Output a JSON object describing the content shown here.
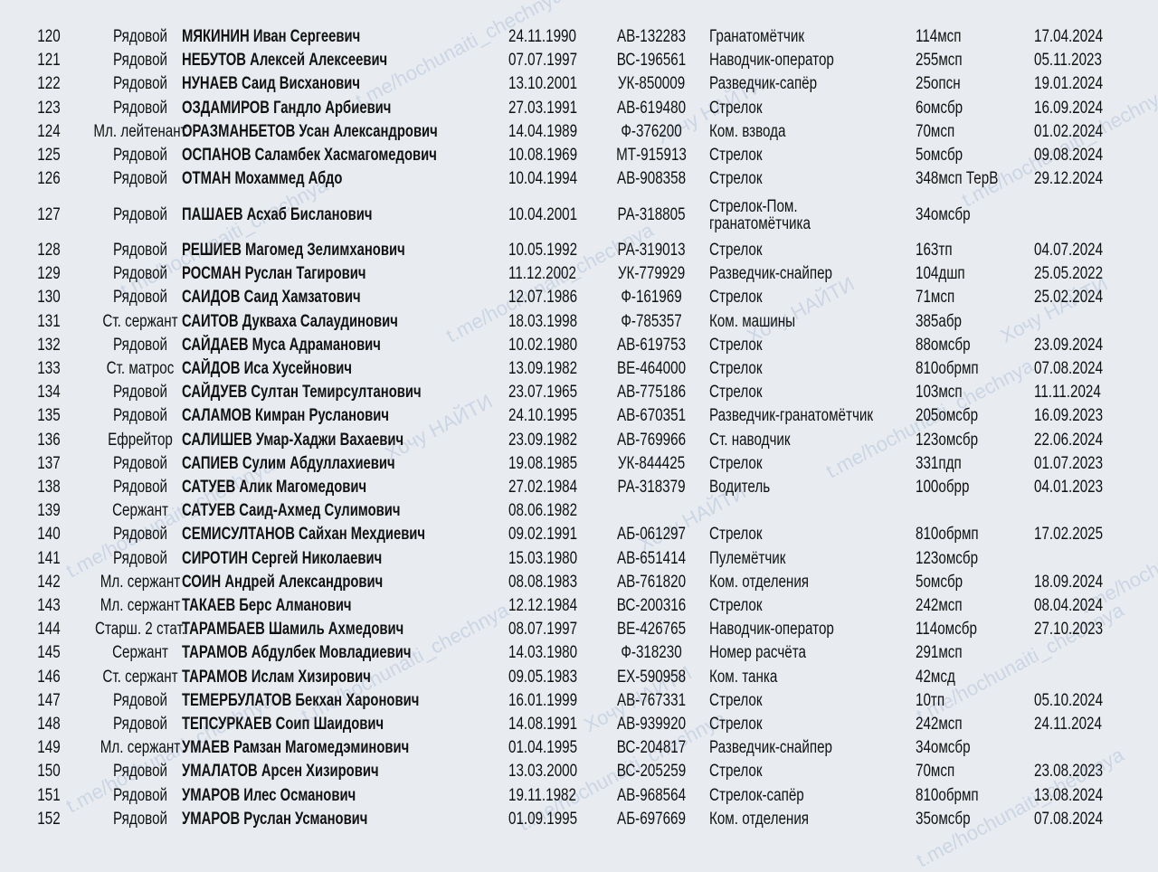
{
  "watermark": {
    "link": "t.me/hochunaiti_chechnya",
    "brand": "Хочу НАЙТИ"
  },
  "rows": [
    {
      "n": "120",
      "rank": "Рядовой",
      "name": "МЯКИНИН Иван Сергеевич",
      "dob": "24.11.1990",
      "doc": "АВ-132283",
      "role": "Гранатомётчик",
      "unit": "114мсп",
      "date": "17.04.2024"
    },
    {
      "n": "121",
      "rank": "Рядовой",
      "name": "НЕБУТОВ Алексей Алексеевич",
      "dob": "07.07.1997",
      "doc": "ВС-196561",
      "role": "Наводчик-оператор",
      "unit": "255мсп",
      "date": "05.11.2023"
    },
    {
      "n": "122",
      "rank": "Рядовой",
      "name": "НУНАЕВ Саид Висханович",
      "dob": "13.10.2001",
      "doc": "УК-850009",
      "role": "Разведчик-сапёр",
      "unit": "25опсн",
      "date": "19.01.2024"
    },
    {
      "n": "123",
      "rank": "Рядовой",
      "name": "ОЗДАМИРОВ Гандло Арбиевич",
      "dob": "27.03.1991",
      "doc": "АВ-619480",
      "role": "Стрелок",
      "unit": "6омсбр",
      "date": "16.09.2024"
    },
    {
      "n": "124",
      "rank": "Мл. лейтенант",
      "name": "ОРАЗМАНБЕТОВ Усан Александрович",
      "dob": "14.04.1989",
      "doc": "Ф-376200",
      "role": "Ком. взвода",
      "unit": "70мсп",
      "date": "01.02.2024"
    },
    {
      "n": "125",
      "rank": "Рядовой",
      "name": "ОСПАНОВ Саламбек Хасмагомедович",
      "dob": "10.08.1969",
      "doc": "МТ-915913",
      "role": "Стрелок",
      "unit": "5омсбр",
      "date": "09.08.2024"
    },
    {
      "n": "126",
      "rank": "Рядовой",
      "name": "ОТМАН Мохаммед Абдо",
      "dob": "10.04.1994",
      "doc": "АВ-908358",
      "role": "Стрелок",
      "unit": "348мсп ТерВ",
      "date": "29.12.2024"
    },
    {
      "n": "127",
      "rank": "Рядовой",
      "name": "ПАШАЕВ Асхаб Бисланович",
      "dob": "10.04.2001",
      "doc": "РА-318805",
      "role": "Стрелок-Пом. гранатомётчика",
      "unit": "34омсбр",
      "date": ""
    },
    {
      "n": "128",
      "rank": "Рядовой",
      "name": "РЕШИЕВ Магомед Зелимханович",
      "dob": "10.05.1992",
      "doc": "РА-319013",
      "role": "Стрелок",
      "unit": "163тп",
      "date": "04.07.2024"
    },
    {
      "n": "129",
      "rank": "Рядовой",
      "name": "РОСМАН Руслан Тагирович",
      "dob": "11.12.2002",
      "doc": "УК-779929",
      "role": "Разведчик-снайпер",
      "unit": "104дшп",
      "date": "25.05.2022"
    },
    {
      "n": "130",
      "rank": "Рядовой",
      "name": "САИДОВ Саид Хамзатович",
      "dob": "12.07.1986",
      "doc": "Ф-161969",
      "role": "Стрелок",
      "unit": "71мсп",
      "date": "25.02.2024"
    },
    {
      "n": "131",
      "rank": "Ст. сержант",
      "name": "САИТОВ Дукваха Салаудинович",
      "dob": "18.03.1998",
      "doc": "Ф-785357",
      "role": "Ком. машины",
      "unit": "385абр",
      "date": ""
    },
    {
      "n": "132",
      "rank": "Рядовой",
      "name": "САЙДАЕВ Муса Адраманович",
      "dob": "10.02.1980",
      "doc": "АВ-619753",
      "role": "Стрелок",
      "unit": "88омсбр",
      "date": "23.09.2024"
    },
    {
      "n": "133",
      "rank": "Ст. матрос",
      "name": "САЙДОВ Иса Хусейнович",
      "dob": "13.09.1982",
      "doc": "ВЕ-464000",
      "role": "Стрелок",
      "unit": "810обрмп",
      "date": "07.08.2024"
    },
    {
      "n": "134",
      "rank": "Рядовой",
      "name": "САЙДУЕВ Султан Темирсултанович",
      "dob": "23.07.1965",
      "doc": "АВ-775186",
      "role": "Стрелок",
      "unit": "103мсп",
      "date": "11.11.2024"
    },
    {
      "n": "135",
      "rank": "Рядовой",
      "name": "САЛАМОВ Кимран Русланович",
      "dob": "24.10.1995",
      "doc": "АВ-670351",
      "role": "Разведчик-гранатомётчик",
      "unit": "205омсбр",
      "date": "16.09.2023"
    },
    {
      "n": "136",
      "rank": "Ефрейтор",
      "name": "САЛИШЕВ Умар-Хаджи Вахаевич",
      "dob": "23.09.1982",
      "doc": "АВ-769966",
      "role": "Ст. наводчик",
      "unit": "123омсбр",
      "date": "22.06.2024"
    },
    {
      "n": "137",
      "rank": "Рядовой",
      "name": "САПИЕВ Сулим Абдуллахиевич",
      "dob": "19.08.1985",
      "doc": "УК-844425",
      "role": "Стрелок",
      "unit": "331пдп",
      "date": "01.07.2023"
    },
    {
      "n": "138",
      "rank": "Рядовой",
      "name": "САТУЕВ Алик Магомедович",
      "dob": "27.02.1984",
      "doc": "РА-318379",
      "role": "Водитель",
      "unit": "100обрр",
      "date": "04.01.2023"
    },
    {
      "n": "139",
      "rank": "Сержант",
      "name": "САТУЕВ Саид-Ахмед Сулимович",
      "dob": "08.06.1982",
      "doc": "",
      "role": "",
      "unit": "",
      "date": ""
    },
    {
      "n": "140",
      "rank": "Рядовой",
      "name": "СЕМИСУЛТАНОВ Сайхан Мехдиевич",
      "dob": "09.02.1991",
      "doc": "АБ-061297",
      "role": "Стрелок",
      "unit": "810обрмп",
      "date": "17.02.2025"
    },
    {
      "n": "141",
      "rank": "Рядовой",
      "name": "СИРОТИН Сергей Николаевич",
      "dob": "15.03.1980",
      "doc": "АВ-651414",
      "role": "Пулемётчик",
      "unit": "123омсбр",
      "date": ""
    },
    {
      "n": "142",
      "rank": "Мл. сержант",
      "name": "СОИН Андрей Александрович",
      "dob": "08.08.1983",
      "doc": "АВ-761820",
      "role": "Ком. отделения",
      "unit": "5омсбр",
      "date": "18.09.2024"
    },
    {
      "n": "143",
      "rank": "Мл. сержант",
      "name": "ТАКАЕВ Берс Алманович",
      "dob": "12.12.1984",
      "doc": "ВС-200316",
      "role": "Стрелок",
      "unit": "242мсп",
      "date": "08.04.2024"
    },
    {
      "n": "144",
      "rank": "Старш. 2 стат.",
      "name": "ТАРАМБАЕВ Шамиль Ахмедович",
      "dob": "08.07.1997",
      "doc": "ВЕ-426765",
      "role": "Наводчик-оператор",
      "unit": "114омсбр",
      "date": "27.10.2023"
    },
    {
      "n": "145",
      "rank": "Сержант",
      "name": "ТАРАМОВ Абдулбек Мовладиевич",
      "dob": "14.03.1980",
      "doc": "Ф-318230",
      "role": "Номер расчёта",
      "unit": "291мсп",
      "date": ""
    },
    {
      "n": "146",
      "rank": "Ст. сержант",
      "name": "ТАРАМОВ Ислам Хизирович",
      "dob": "09.05.1983",
      "doc": "ЕХ-590958",
      "role": "Ком. танка",
      "unit": "42мсд",
      "date": ""
    },
    {
      "n": "147",
      "rank": "Рядовой",
      "name": "ТЕМЕРБУЛАТОВ Бекхан Харонович",
      "dob": "16.01.1999",
      "doc": "АВ-767331",
      "role": "Стрелок",
      "unit": "10тп",
      "date": "05.10.2024"
    },
    {
      "n": "148",
      "rank": "Рядовой",
      "name": "ТЕПСУРКАЕВ Соип Шаидович",
      "dob": "14.08.1991",
      "doc": "АВ-939920",
      "role": "Стрелок",
      "unit": "242мсп",
      "date": "24.11.2024"
    },
    {
      "n": "149",
      "rank": "Мл. сержант",
      "name": "УМАЕВ Рамзан Магомедэминович",
      "dob": "01.04.1995",
      "doc": "ВС-204817",
      "role": "Разведчик-снайпер",
      "unit": "34омсбр",
      "date": ""
    },
    {
      "n": "150",
      "rank": "Рядовой",
      "name": "УМАЛАТОВ Арсен Хизирович",
      "dob": "13.03.2000",
      "doc": "ВС-205259",
      "role": "Стрелок",
      "unit": "70мсп",
      "date": "23.08.2023"
    },
    {
      "n": "151",
      "rank": "Рядовой",
      "name": "УМАРОВ Илес Османович",
      "dob": "19.11.1982",
      "doc": "АВ-968564",
      "role": "Стрелок-сапёр",
      "unit": "810обрмп",
      "date": "13.08.2024"
    },
    {
      "n": "152",
      "rank": "Рядовой",
      "name": "УМАРОВ Руслан Усманович",
      "dob": "01.09.1995",
      "doc": "АБ-697669",
      "role": "Ком. отделения",
      "unit": "35омсбр",
      "date": "07.08.2024"
    }
  ]
}
